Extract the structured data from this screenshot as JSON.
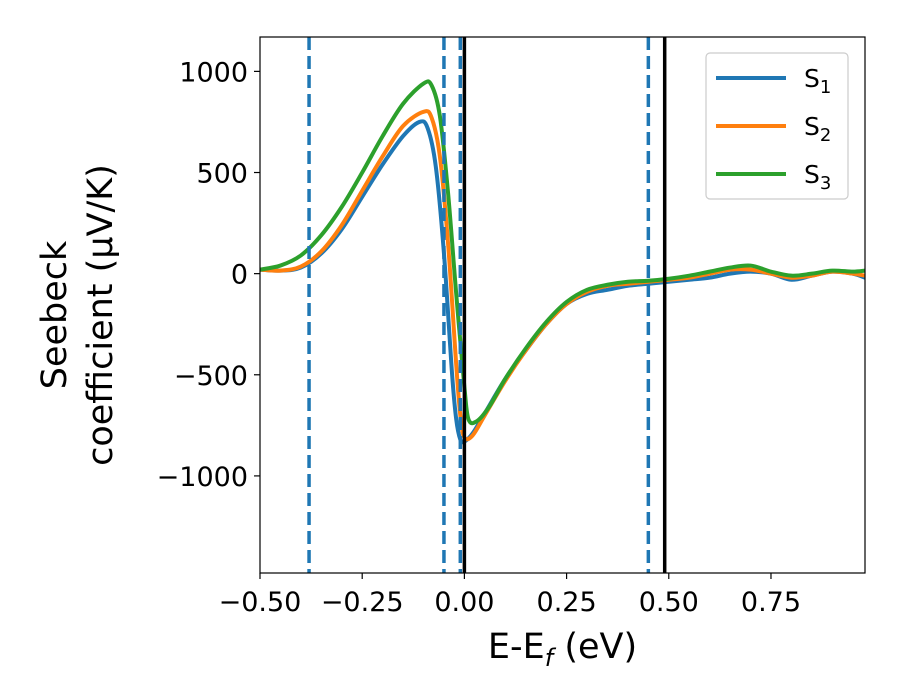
{
  "chart_data": {
    "type": "line",
    "xlabel": "E-E",
    "xlabel_sub": "f",
    "xlabel_suffix": " (eV)",
    "ylabel_line1": "Seebeck",
    "ylabel_line2": "coefficient  (μV/K)",
    "xlim": [
      -0.5,
      0.98
    ],
    "ylim": [
      -1480,
      1170
    ],
    "xticks": [
      -0.5,
      -0.25,
      0.0,
      0.25,
      0.5,
      0.75
    ],
    "xtick_labels": [
      "−0.50",
      "−0.25",
      "0.00",
      "0.25",
      "0.50",
      "0.75"
    ],
    "yticks": [
      -1000,
      -500,
      0,
      500,
      1000
    ],
    "ytick_labels": [
      "−1000",
      "−500",
      "0",
      "500",
      "1000"
    ],
    "grid": false,
    "legend_position": "top-right",
    "vlines_dashed": {
      "color": "#1f77b4",
      "x": [
        -0.38,
        -0.05,
        -0.01,
        0.45
      ]
    },
    "vlines_solid": {
      "color": "#000000",
      "x": [
        0.0,
        0.49
      ]
    },
    "series": [
      {
        "name": "S",
        "sub": "1",
        "color": "#1f77b4",
        "points": [
          [
            -0.5,
            20
          ],
          [
            -0.45,
            15
          ],
          [
            -0.4,
            30
          ],
          [
            -0.35,
            100
          ],
          [
            -0.3,
            220
          ],
          [
            -0.25,
            380
          ],
          [
            -0.2,
            540
          ],
          [
            -0.15,
            680
          ],
          [
            -0.11,
            750
          ],
          [
            -0.09,
            720
          ],
          [
            -0.07,
            530
          ],
          [
            -0.05,
            100
          ],
          [
            -0.03,
            -500
          ],
          [
            -0.02,
            -720
          ],
          [
            -0.01,
            -820
          ],
          [
            0.0,
            -830
          ],
          [
            0.02,
            -790
          ],
          [
            0.05,
            -690
          ],
          [
            0.1,
            -520
          ],
          [
            0.15,
            -380
          ],
          [
            0.2,
            -250
          ],
          [
            0.25,
            -150
          ],
          [
            0.3,
            -100
          ],
          [
            0.35,
            -80
          ],
          [
            0.4,
            -60
          ],
          [
            0.45,
            -50
          ],
          [
            0.5,
            -40
          ],
          [
            0.55,
            -30
          ],
          [
            0.6,
            -20
          ],
          [
            0.65,
            0
          ],
          [
            0.7,
            10
          ],
          [
            0.75,
            0
          ],
          [
            0.8,
            -30
          ],
          [
            0.85,
            -10
          ],
          [
            0.9,
            10
          ],
          [
            0.95,
            0
          ],
          [
            0.98,
            -20
          ]
        ]
      },
      {
        "name": "S",
        "sub": "2",
        "color": "#ff7f0e",
        "points": [
          [
            -0.5,
            20
          ],
          [
            -0.45,
            15
          ],
          [
            -0.4,
            35
          ],
          [
            -0.35,
            110
          ],
          [
            -0.3,
            240
          ],
          [
            -0.25,
            410
          ],
          [
            -0.2,
            580
          ],
          [
            -0.15,
            730
          ],
          [
            -0.1,
            800
          ],
          [
            -0.08,
            770
          ],
          [
            -0.06,
            580
          ],
          [
            -0.04,
            150
          ],
          [
            -0.02,
            -450
          ],
          [
            -0.01,
            -700
          ],
          [
            0.0,
            -810
          ],
          [
            0.02,
            -800
          ],
          [
            0.05,
            -700
          ],
          [
            0.1,
            -530
          ],
          [
            0.15,
            -380
          ],
          [
            0.2,
            -250
          ],
          [
            0.25,
            -150
          ],
          [
            0.3,
            -90
          ],
          [
            0.35,
            -60
          ],
          [
            0.4,
            -50
          ],
          [
            0.45,
            -40
          ],
          [
            0.5,
            -30
          ],
          [
            0.55,
            -20
          ],
          [
            0.6,
            0
          ],
          [
            0.65,
            20
          ],
          [
            0.7,
            20
          ],
          [
            0.75,
            0
          ],
          [
            0.8,
            -20
          ],
          [
            0.85,
            -10
          ],
          [
            0.9,
            10
          ],
          [
            0.95,
            0
          ],
          [
            0.98,
            -10
          ]
        ]
      },
      {
        "name": "S",
        "sub": "3",
        "color": "#2ca02c",
        "points": [
          [
            -0.5,
            20
          ],
          [
            -0.45,
            40
          ],
          [
            -0.4,
            90
          ],
          [
            -0.35,
            190
          ],
          [
            -0.3,
            330
          ],
          [
            -0.25,
            500
          ],
          [
            -0.2,
            680
          ],
          [
            -0.15,
            840
          ],
          [
            -0.1,
            940
          ],
          [
            -0.08,
            930
          ],
          [
            -0.06,
            780
          ],
          [
            -0.04,
            400
          ],
          [
            -0.02,
            -100
          ],
          [
            0.0,
            -560
          ],
          [
            0.01,
            -720
          ],
          [
            0.03,
            -730
          ],
          [
            0.06,
            -660
          ],
          [
            0.1,
            -520
          ],
          [
            0.15,
            -370
          ],
          [
            0.2,
            -240
          ],
          [
            0.25,
            -140
          ],
          [
            0.3,
            -80
          ],
          [
            0.35,
            -55
          ],
          [
            0.4,
            -40
          ],
          [
            0.45,
            -35
          ],
          [
            0.5,
            -25
          ],
          [
            0.55,
            -10
          ],
          [
            0.6,
            10
          ],
          [
            0.65,
            30
          ],
          [
            0.7,
            40
          ],
          [
            0.75,
            10
          ],
          [
            0.8,
            -10
          ],
          [
            0.85,
            0
          ],
          [
            0.9,
            15
          ],
          [
            0.95,
            10
          ],
          [
            0.98,
            15
          ]
        ]
      }
    ]
  }
}
